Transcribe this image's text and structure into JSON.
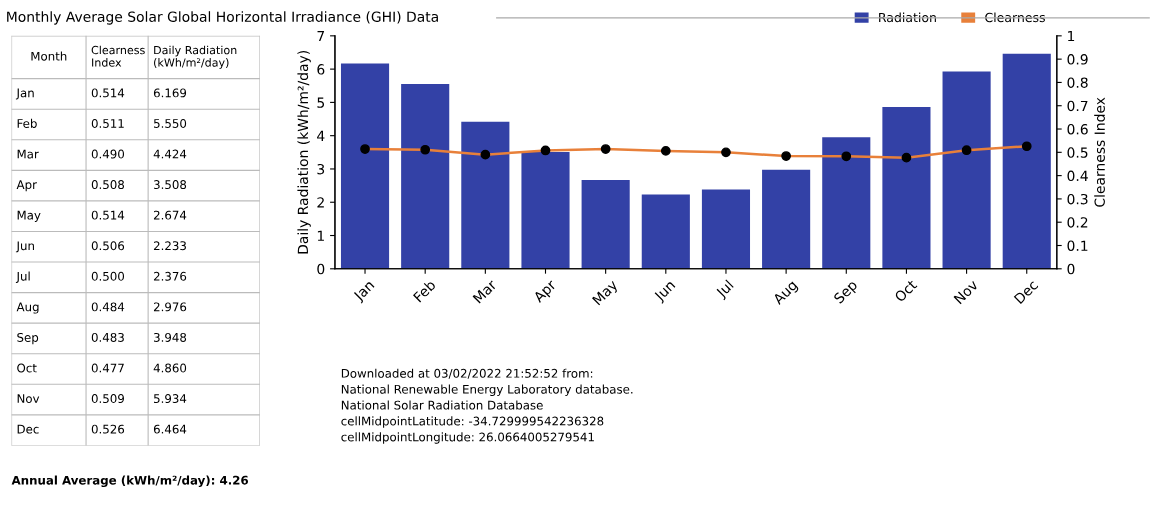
{
  "chart_data": [
    {
      "type": "other",
      "title": "Monthly Average Solar Global Horizontal Irradiance (GHI) Data",
      "xlabel": "Month",
      "categories": [
        "Jan",
        "Feb",
        "Mar",
        "Apr",
        "May",
        "Jun",
        "Jul",
        "Aug",
        "Sep",
        "Oct",
        "Nov",
        "Dec"
      ],
      "series": [
        {
          "name": "Clearness\nIndex",
          "values": [
            0.514,
            0.511,
            0.49,
            0.508,
            0.514,
            0.506,
            0.5,
            0.484,
            0.483,
            0.477,
            0.509,
            0.526
          ],
          "value_labels": [
            "0.514",
            "0.511",
            "0.490",
            "0.508",
            "0.514",
            "0.506",
            "0.500",
            "0.484",
            "0.483",
            "0.477",
            "0.509",
            "0.526"
          ]
        },
        {
          "name": "Daily Radiation\n(kWh/m²/day)",
          "values": [
            6.169,
            5.55,
            4.424,
            3.508,
            2.674,
            2.233,
            2.376,
            2.976,
            3.948,
            4.86,
            5.934,
            6.464
          ],
          "value_labels": [
            "6.169",
            "5.550",
            "4.424",
            "3.508",
            "2.674",
            "2.233",
            "2.376",
            "2.976",
            "3.948",
            "4.860",
            "5.934",
            "6.464"
          ]
        }
      ],
      "annotations": [
        "Annual Average (kWh/m²/day): 4.26"
      ]
    },
    {
      "type": "bar",
      "categories": [
        "Jan",
        "Feb",
        "Mar",
        "Apr",
        "May",
        "Jun",
        "Jul",
        "Aug",
        "Sep",
        "Oct",
        "Nov",
        "Dec"
      ],
      "series": [
        {
          "name": "Radiation",
          "color": "#3341a6",
          "values": [
            6.17,
            5.55,
            4.42,
            3.51,
            2.67,
            2.23,
            2.38,
            2.98,
            3.95,
            4.86,
            5.93,
            6.46
          ]
        },
        {
          "name": "Clearness",
          "type": "line",
          "axis": "y2",
          "color": "#e8803a",
          "values": [
            0.514,
            0.511,
            0.49,
            0.508,
            0.514,
            0.506,
            0.5,
            0.484,
            0.483,
            0.477,
            0.509,
            0.526
          ]
        }
      ],
      "marker": "circle",
      "ylabel": "Daily Radiation (kWh/m²/day)",
      "y2label": "Clearness Index",
      "ylim": [
        0,
        7
      ],
      "yticks": [
        0,
        1,
        2,
        3,
        4,
        5,
        6,
        7
      ],
      "y2lim": [
        0,
        1
      ],
      "y2ticks": [
        0,
        0.1,
        0.2,
        0.3,
        0.4,
        0.5,
        0.6,
        0.7,
        0.8,
        0.9,
        1
      ],
      "legend": "top right",
      "annotations": [
        "Downloaded at 03/02/2022 21:52:52 from:\nNational Renewable Energy Laboratory database.\nNational Solar Radiation Database\ncellMidpointLatitude: -34.729999542236328\ncellMidpointLongitude: 26.0664005279541"
      ]
    }
  ]
}
